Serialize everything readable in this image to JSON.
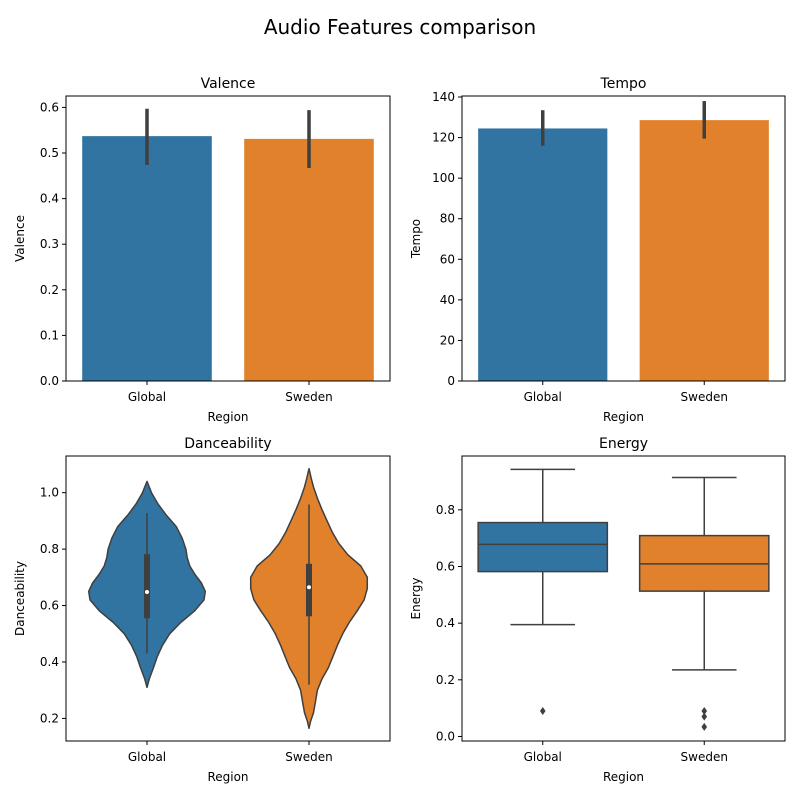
{
  "figure": {
    "title": "Audio Features comparison"
  },
  "colors": {
    "blue": "#3274a1",
    "orange": "#e1812c",
    "edge": "#3f3f3f"
  },
  "chart_data": [
    {
      "id": "valence",
      "type": "bar",
      "title": "Valence",
      "xlabel": "Region",
      "ylabel": "Valence",
      "categories": [
        "Global",
        "Sweden"
      ],
      "values": [
        0.537,
        0.531
      ],
      "ci": [
        [
          0.474,
          0.597
        ],
        [
          0.467,
          0.594
        ]
      ],
      "ylim": [
        0,
        0.625
      ],
      "yticks": [
        0,
        0.1,
        0.2,
        0.3,
        0.4,
        0.5,
        0.6
      ],
      "yticklabels": [
        "0.0",
        "0.1",
        "0.2",
        "0.3",
        "0.4",
        "0.5",
        "0.6"
      ]
    },
    {
      "id": "tempo",
      "type": "bar",
      "title": "Tempo",
      "xlabel": "Region",
      "ylabel": "Tempo",
      "categories": [
        "Global",
        "Sweden"
      ],
      "values": [
        124.5,
        128.6
      ],
      "ci": [
        [
          116.0,
          133.5
        ],
        [
          119.5,
          138.0
        ]
      ],
      "ylim": [
        0,
        140.5
      ],
      "yticks": [
        0,
        20,
        40,
        60,
        80,
        100,
        120,
        140
      ],
      "yticklabels": [
        "0",
        "20",
        "40",
        "60",
        "80",
        "100",
        "120",
        "140"
      ]
    },
    {
      "id": "danceability",
      "type": "violin",
      "title": "Danceability",
      "xlabel": "Region",
      "ylabel": "Danceability",
      "categories": [
        "Global",
        "Sweden"
      ],
      "ylim": [
        0.12,
        1.13
      ],
      "yticks": [
        0.2,
        0.4,
        0.6,
        0.8,
        1.0
      ],
      "yticklabels": [
        "0.2",
        "0.4",
        "0.6",
        "0.8",
        "1.0"
      ],
      "violins": [
        {
          "y": [
            0.31,
            0.34,
            0.38,
            0.42,
            0.46,
            0.5,
            0.54,
            0.58,
            0.62,
            0.65,
            0.68,
            0.71,
            0.74,
            0.77,
            0.8,
            0.84,
            0.88,
            0.92,
            0.96,
            1.0,
            1.04
          ],
          "halfwidth": [
            0.0,
            0.035,
            0.1,
            0.16,
            0.24,
            0.35,
            0.52,
            0.73,
            0.88,
            0.9,
            0.84,
            0.74,
            0.66,
            0.62,
            0.6,
            0.54,
            0.45,
            0.3,
            0.17,
            0.07,
            0.0
          ],
          "median": 0.648,
          "q1": 0.555,
          "q3": 0.782,
          "whisker": [
            0.43,
            0.928
          ]
        },
        {
          "y": [
            0.165,
            0.19,
            0.22,
            0.26,
            0.3,
            0.34,
            0.38,
            0.42,
            0.46,
            0.5,
            0.54,
            0.58,
            0.62,
            0.66,
            0.7,
            0.74,
            0.78,
            0.82,
            0.86,
            0.9,
            0.94,
            0.98,
            1.02,
            1.05,
            1.085
          ],
          "halfwidth": [
            0.0,
            0.025,
            0.07,
            0.1,
            0.13,
            0.2,
            0.3,
            0.37,
            0.44,
            0.52,
            0.62,
            0.74,
            0.85,
            0.9,
            0.9,
            0.8,
            0.6,
            0.46,
            0.36,
            0.28,
            0.2,
            0.13,
            0.07,
            0.035,
            0.0
          ],
          "median": 0.665,
          "q1": 0.562,
          "q3": 0.748,
          "whisker": [
            0.32,
            0.958
          ]
        }
      ]
    },
    {
      "id": "energy",
      "type": "box",
      "title": "Energy",
      "xlabel": "Region",
      "ylabel": "Energy",
      "categories": [
        "Global",
        "Sweden"
      ],
      "ylim": [
        -0.016,
        0.99
      ],
      "yticks": [
        0.0,
        0.2,
        0.4,
        0.6,
        0.8
      ],
      "yticklabels": [
        "0.0",
        "0.2",
        "0.4",
        "0.6",
        "0.8"
      ],
      "boxes": [
        {
          "whisker_low": 0.395,
          "q1": 0.582,
          "median": 0.678,
          "q3": 0.755,
          "whisker_high": 0.943,
          "outliers": [
            0.09
          ]
        },
        {
          "whisker_low": 0.235,
          "q1": 0.513,
          "median": 0.609,
          "q3": 0.709,
          "whisker_high": 0.914,
          "outliers": [
            0.09,
            0.07,
            0.034
          ]
        }
      ]
    }
  ]
}
